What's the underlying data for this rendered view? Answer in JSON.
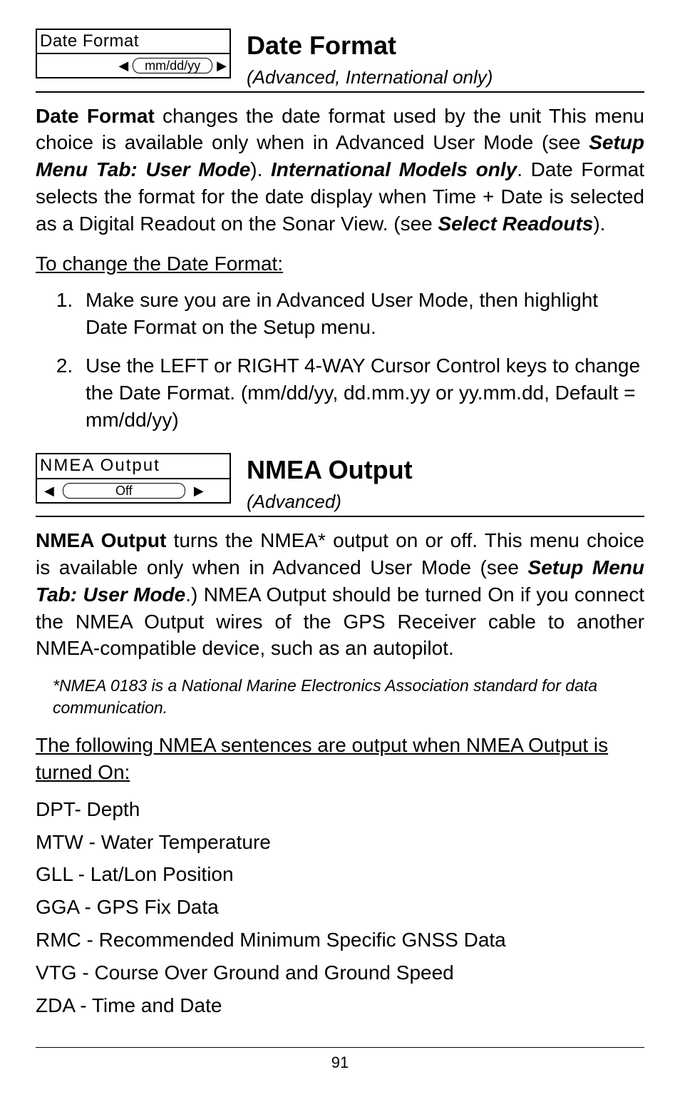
{
  "section1": {
    "menu_title": "Date Format",
    "menu_value": "mm/dd/yy",
    "title": "Date Format",
    "subtitle": "(Advanced, International only)",
    "body_lead": "Date Format",
    "body_1": " changes the date format used by the unit  This menu choice is available only when in Advanced User Mode (see ",
    "body_ref1": "Setup Menu Tab: User Mode",
    "body_2": "). ",
    "body_ref2": "International Models only",
    "body_3": ". Date Format selects the format for the date display when Time + Date is selected as a Digital Readout on the Sonar View. (see ",
    "body_ref3": "Select Readouts",
    "body_4": ").",
    "change_heading": "To change the Date Format:",
    "step1": "Make sure you are in Advanced User Mode, then highlight Date Format on the Setup menu.",
    "step2": "Use the LEFT or RIGHT 4-WAY Cursor Control keys to change the Date Format. (mm/dd/yy, dd.mm.yy or yy.mm.dd, Default = mm/dd/yy)"
  },
  "section2": {
    "menu_title": "NMEA Output",
    "menu_value": "Off",
    "title": "NMEA Output",
    "subtitle": "(Advanced)",
    "body_lead": "NMEA Output",
    "body_1": " turns the NMEA* output on or off.  This menu choice is available only when in Advanced User Mode (see ",
    "body_ref1": "Setup Menu Tab: User Mode",
    "body_2": ".) NMEA Output should be turned On if you connect the NMEA Output wires of the GPS Receiver cable to another NMEA-compatible device, such as an autopilot.",
    "footnote": "*NMEA 0183 is a National Marine Electronics Association standard for data communication.",
    "output_heading": "The following NMEA sentences are output when NMEA Output is turned On:",
    "lines": {
      "l1": "DPT- Depth",
      "l2": "MTW - Water Temperature",
      "l3": "GLL - Lat/Lon Position",
      "l4": "GGA - GPS Fix Data",
      "l5": "RMC - Recommended Minimum Specific GNSS Data",
      "l6": "VTG - Course Over Ground and Ground Speed",
      "l7": "ZDA - Time and Date"
    }
  },
  "page_number": "91"
}
